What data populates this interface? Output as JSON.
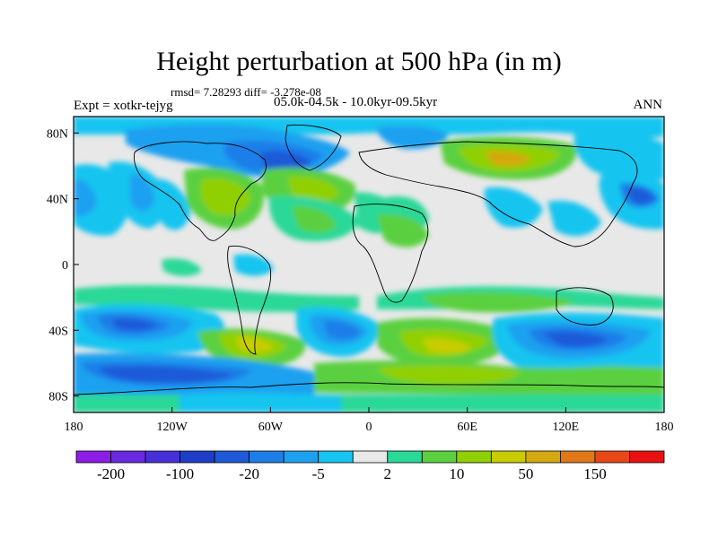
{
  "title": "Height perturbation at 500 hPa (in m)",
  "stats_text": "rmsd= 7.28293 diff= -3.278e-08",
  "experiment_label": "Expt = xotkr-tejyg",
  "period_label": "05.0k-04.5k - 10.0kyr-09.5kyr",
  "season_label": "ANN",
  "map": {
    "projection": "cylindrical-equidistant",
    "lon_range": [
      -180,
      180
    ],
    "lat_range": [
      -90,
      90
    ],
    "x_ticks": [
      {
        "value": -180,
        "label": "180"
      },
      {
        "value": -120,
        "label": "120W"
      },
      {
        "value": -60,
        "label": "60W"
      },
      {
        "value": 0,
        "label": "0"
      },
      {
        "value": 60,
        "label": "60E"
      },
      {
        "value": 120,
        "label": "120E"
      },
      {
        "value": 180,
        "label": "180"
      }
    ],
    "y_ticks": [
      {
        "value": 80,
        "label": "80N"
      },
      {
        "value": 40,
        "label": "40N"
      },
      {
        "value": 0,
        "label": "0"
      },
      {
        "value": -40,
        "label": "40S"
      },
      {
        "value": -80,
        "label": "80S"
      }
    ]
  },
  "colorbar": {
    "colors": [
      "#8c1ee8",
      "#6a28e0",
      "#4830d8",
      "#1e3ec8",
      "#1e5ad8",
      "#1e7ee8",
      "#1ea0f0",
      "#18c4f0",
      "#e8e8e8",
      "#2ad898",
      "#5ad040",
      "#90d000",
      "#c8cc00",
      "#d4a810",
      "#e07818",
      "#e84818",
      "#e81010"
    ],
    "tick_labels": [
      {
        "after_box": 1,
        "label": "-200"
      },
      {
        "after_box": 3,
        "label": "-100"
      },
      {
        "after_box": 5,
        "label": "-20"
      },
      {
        "after_box": 7,
        "label": "-5"
      },
      {
        "after_box": 9,
        "label": "2"
      },
      {
        "after_box": 11,
        "label": "10"
      },
      {
        "after_box": 13,
        "label": "50"
      },
      {
        "after_box": 15,
        "label": "150"
      }
    ]
  }
}
